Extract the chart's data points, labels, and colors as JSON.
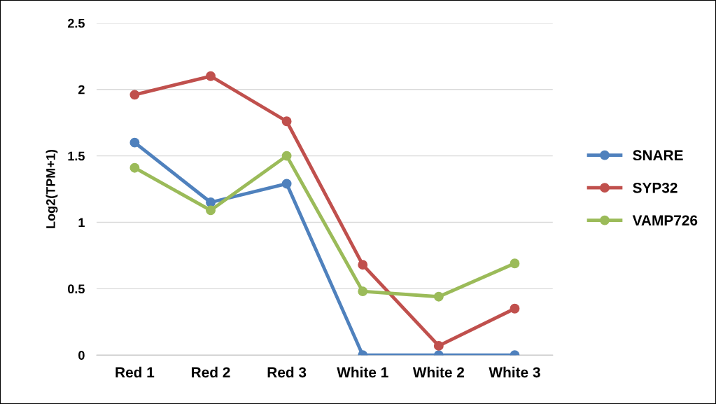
{
  "chart_data": {
    "type": "line",
    "ylabel": "Log2(TPM+1)",
    "categories": [
      "Red 1",
      "Red 2",
      "Red 3",
      "White 1",
      "White 2",
      "White 3"
    ],
    "series": [
      {
        "name": "SNARE",
        "color": "#4f81bd",
        "values": [
          1.6,
          1.15,
          1.29,
          0,
          0,
          0
        ]
      },
      {
        "name": "SYP32",
        "color": "#c0504d",
        "values": [
          1.96,
          2.1,
          1.76,
          0.68,
          0.07,
          0.35
        ]
      },
      {
        "name": "VAMP726",
        "color": "#9bbb59",
        "values": [
          1.41,
          1.09,
          1.5,
          0.48,
          0.44,
          0.69
        ]
      }
    ],
    "ylim": [
      0,
      2.5
    ],
    "yticks": [
      0,
      {
        "value": 0.5,
        "label": "0.5"
      },
      1,
      {
        "value": 1.5,
        "label": "1.5"
      },
      2,
      {
        "value": 2.5,
        "label": "2.5"
      }
    ],
    "grid": "y",
    "legend": "right",
    "marker": "circle",
    "line_style": "solid"
  }
}
